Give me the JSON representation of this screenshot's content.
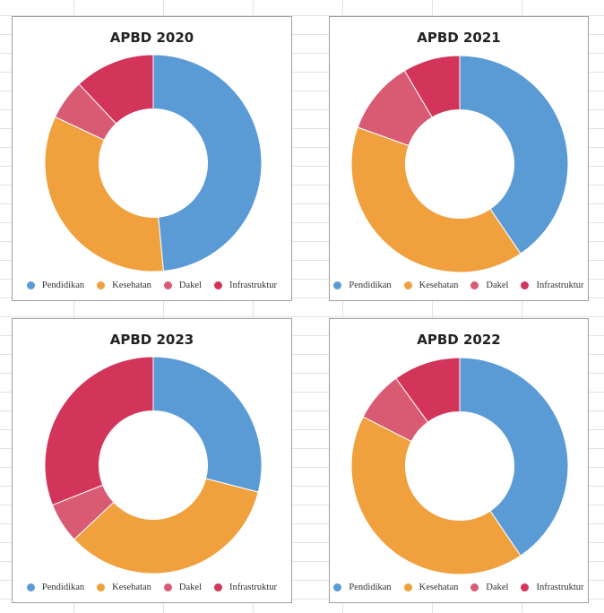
{
  "chart_data": [
    {
      "type": "pie",
      "title": "APBD 2020",
      "categories": [
        "Pendidikan",
        "Kesehatan",
        "Dakel",
        "Infrastruktur"
      ],
      "values": [
        48.5,
        33.5,
        6,
        12
      ],
      "colors": [
        "#5b9bd5",
        "#f0a03c",
        "#d95b73",
        "#d2345a"
      ],
      "legend_position": "bottom",
      "hole": 0.5
    },
    {
      "type": "pie",
      "title": "APBD 2021",
      "categories": [
        "Pendidikan",
        "Kesehatan",
        "Dakel",
        "Infrastruktur"
      ],
      "values": [
        40.5,
        40,
        11,
        8.5
      ],
      "colors": [
        "#5b9bd5",
        "#f0a03c",
        "#d95b73",
        "#d2345a"
      ],
      "legend_position": "bottom",
      "hole": 0.5
    },
    {
      "type": "pie",
      "title": "APBD 2023",
      "categories": [
        "Pendidikan",
        "Kesehatan",
        "Dakel",
        "Infrastruktur"
      ],
      "values": [
        29,
        34,
        6,
        31
      ],
      "colors": [
        "#5b9bd5",
        "#f0a03c",
        "#d95b73",
        "#d2345a"
      ],
      "legend_position": "bottom",
      "hole": 0.5
    },
    {
      "type": "pie",
      "title": "APBD 2022",
      "categories": [
        "Pendidikan",
        "Kesehatan",
        "Dakel",
        "Infrastruktur"
      ],
      "values": [
        40.5,
        42,
        7.5,
        10
      ],
      "colors": [
        "#5b9bd5",
        "#f0a03c",
        "#d95b73",
        "#d2345a"
      ],
      "legend_position": "bottom",
      "hole": 0.5
    }
  ]
}
